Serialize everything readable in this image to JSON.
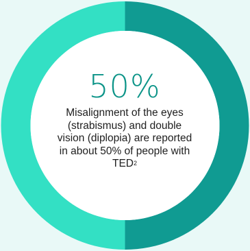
{
  "chart_data": {
    "type": "pie",
    "style": "donut",
    "values": [
      50,
      50
    ],
    "colors": [
      "#109b92",
      "#33e0c4"
    ],
    "center_value": "50%",
    "center_text": "Misalignment of the eyes (strabismus) and double vision (diplopia) are reported in about 50% of people with TED",
    "center_text_superscript": "2"
  },
  "colors": {
    "background": "#e9f9f7",
    "inner": "#ffffff",
    "accent_text": "#0c9488"
  }
}
